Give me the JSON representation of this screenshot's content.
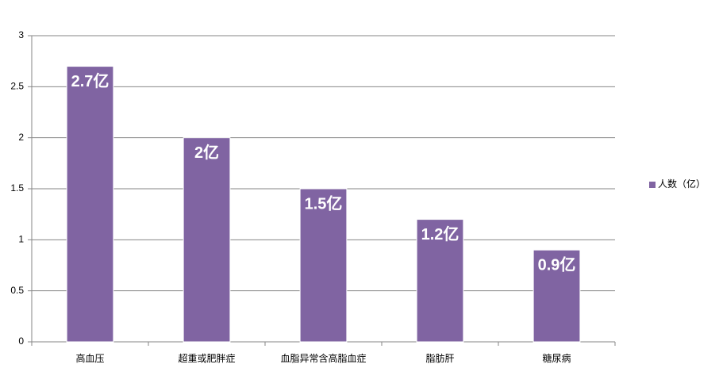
{
  "chart_data": {
    "type": "bar",
    "categories": [
      "高血压",
      "超重或肥胖症",
      "血脂异常含高脂血症",
      "脂肪肝",
      "糖尿病"
    ],
    "series": [
      {
        "name": "人数（亿）",
        "color": "#8064a2",
        "values": [
          2.7,
          2,
          1.5,
          1.2,
          0.9
        ],
        "value_labels": [
          "2.7亿",
          "2亿",
          "1.5亿",
          "1.2亿",
          "0.9亿"
        ]
      }
    ],
    "ylim": [
      0,
      3
    ],
    "yticks": [
      0,
      0.5,
      1,
      1.5,
      2,
      2.5,
      3
    ],
    "grid": true,
    "legend": "right"
  }
}
